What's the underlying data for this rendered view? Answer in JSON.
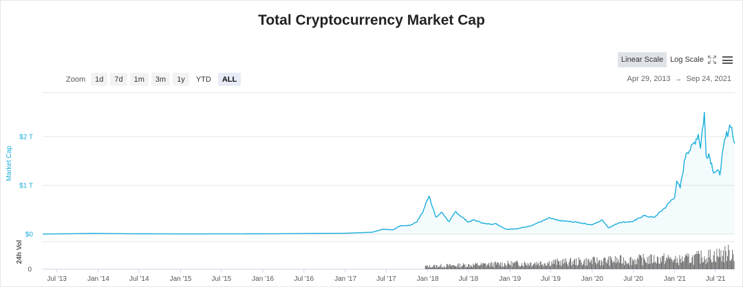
{
  "title": "Total Cryptocurrency Market Cap",
  "zoom": {
    "label": "Zoom",
    "options": [
      "1d",
      "7d",
      "1m",
      "3m",
      "1y",
      "YTD",
      "ALL"
    ],
    "selected": "ALL"
  },
  "scale": {
    "options": [
      "Linear Scale",
      "Log Scale"
    ],
    "selected": "Linear Scale"
  },
  "icons": {
    "fullscreen": "fullscreen-icon",
    "menu": "hamburger-menu-icon"
  },
  "range": {
    "from": "Apr 29, 2013",
    "arrow": "→",
    "to": "Sep 24, 2021"
  },
  "colors": {
    "series": "#1aaedb",
    "volume": "#6b6b6b",
    "grid": "#e6e6e6"
  },
  "chart_data": {
    "type": "area",
    "title": "Total Cryptocurrency Market Cap",
    "ylabel": "Market Cap",
    "y_unit": "USD trillions",
    "y_ticks": [
      "$0",
      "$1 T",
      "$2 T"
    ],
    "ylim": [
      0,
      2.9
    ],
    "x_tick_labels": [
      "Jul '13",
      "Jan '14",
      "Jul '14",
      "Jan '15",
      "Jul '15",
      "Jan '16",
      "Jul '16",
      "Jan '17",
      "Jul '17",
      "Jan '18",
      "Jul '18",
      "Jan '19",
      "Jul '19",
      "Jan '20",
      "Jul '20",
      "Jan '21",
      "Jul '21"
    ],
    "xlim": [
      "2013-04-29",
      "2021-09-24"
    ],
    "grid": true,
    "legend": "none",
    "series": [
      {
        "name": "Market Cap",
        "points": [
          [
            "2013-04-29",
            0.0015
          ],
          [
            "2013-12-05",
            0.014
          ],
          [
            "2014-06-01",
            0.008
          ],
          [
            "2015-01-15",
            0.004
          ],
          [
            "2016-01-01",
            0.007
          ],
          [
            "2016-07-01",
            0.012
          ],
          [
            "2017-01-01",
            0.018
          ],
          [
            "2017-05-01",
            0.04
          ],
          [
            "2017-06-15",
            0.1
          ],
          [
            "2017-08-01",
            0.09
          ],
          [
            "2017-09-01",
            0.17
          ],
          [
            "2017-10-15",
            0.18
          ],
          [
            "2017-11-15",
            0.26
          ],
          [
            "2017-12-10",
            0.45
          ],
          [
            "2018-01-07",
            0.8
          ],
          [
            "2018-02-06",
            0.34
          ],
          [
            "2018-03-05",
            0.45
          ],
          [
            "2018-04-06",
            0.25
          ],
          [
            "2018-05-05",
            0.46
          ],
          [
            "2018-06-29",
            0.25
          ],
          [
            "2018-07-25",
            0.29
          ],
          [
            "2018-09-15",
            0.21
          ],
          [
            "2018-11-01",
            0.21
          ],
          [
            "2018-12-15",
            0.1
          ],
          [
            "2019-02-01",
            0.11
          ],
          [
            "2019-04-01",
            0.17
          ],
          [
            "2019-06-26",
            0.33
          ],
          [
            "2019-08-01",
            0.28
          ],
          [
            "2019-09-15",
            0.26
          ],
          [
            "2019-11-01",
            0.24
          ],
          [
            "2019-12-31",
            0.19
          ],
          [
            "2020-02-15",
            0.29
          ],
          [
            "2020-03-13",
            0.13
          ],
          [
            "2020-05-01",
            0.24
          ],
          [
            "2020-07-01",
            0.26
          ],
          [
            "2020-08-15",
            0.38
          ],
          [
            "2020-10-01",
            0.34
          ],
          [
            "2020-11-20",
            0.55
          ],
          [
            "2020-12-31",
            0.77
          ],
          [
            "2021-01-10",
            1.05
          ],
          [
            "2021-01-25",
            0.95
          ],
          [
            "2021-02-21",
            1.7
          ],
          [
            "2021-03-15",
            1.75
          ],
          [
            "2021-04-15",
            2.05
          ],
          [
            "2021-04-25",
            1.8
          ],
          [
            "2021-05-12",
            2.48
          ],
          [
            "2021-05-20",
            1.6
          ],
          [
            "2021-06-01",
            1.65
          ],
          [
            "2021-06-22",
            1.3
          ],
          [
            "2021-07-20",
            1.25
          ],
          [
            "2021-08-10",
            1.9
          ],
          [
            "2021-09-06",
            2.28
          ],
          [
            "2021-09-15",
            2.05
          ],
          [
            "2021-09-24",
            1.86
          ]
        ]
      }
    ],
    "volume": {
      "ylabel": "24h Vol",
      "y_ticks": [
        "0"
      ]
    }
  }
}
